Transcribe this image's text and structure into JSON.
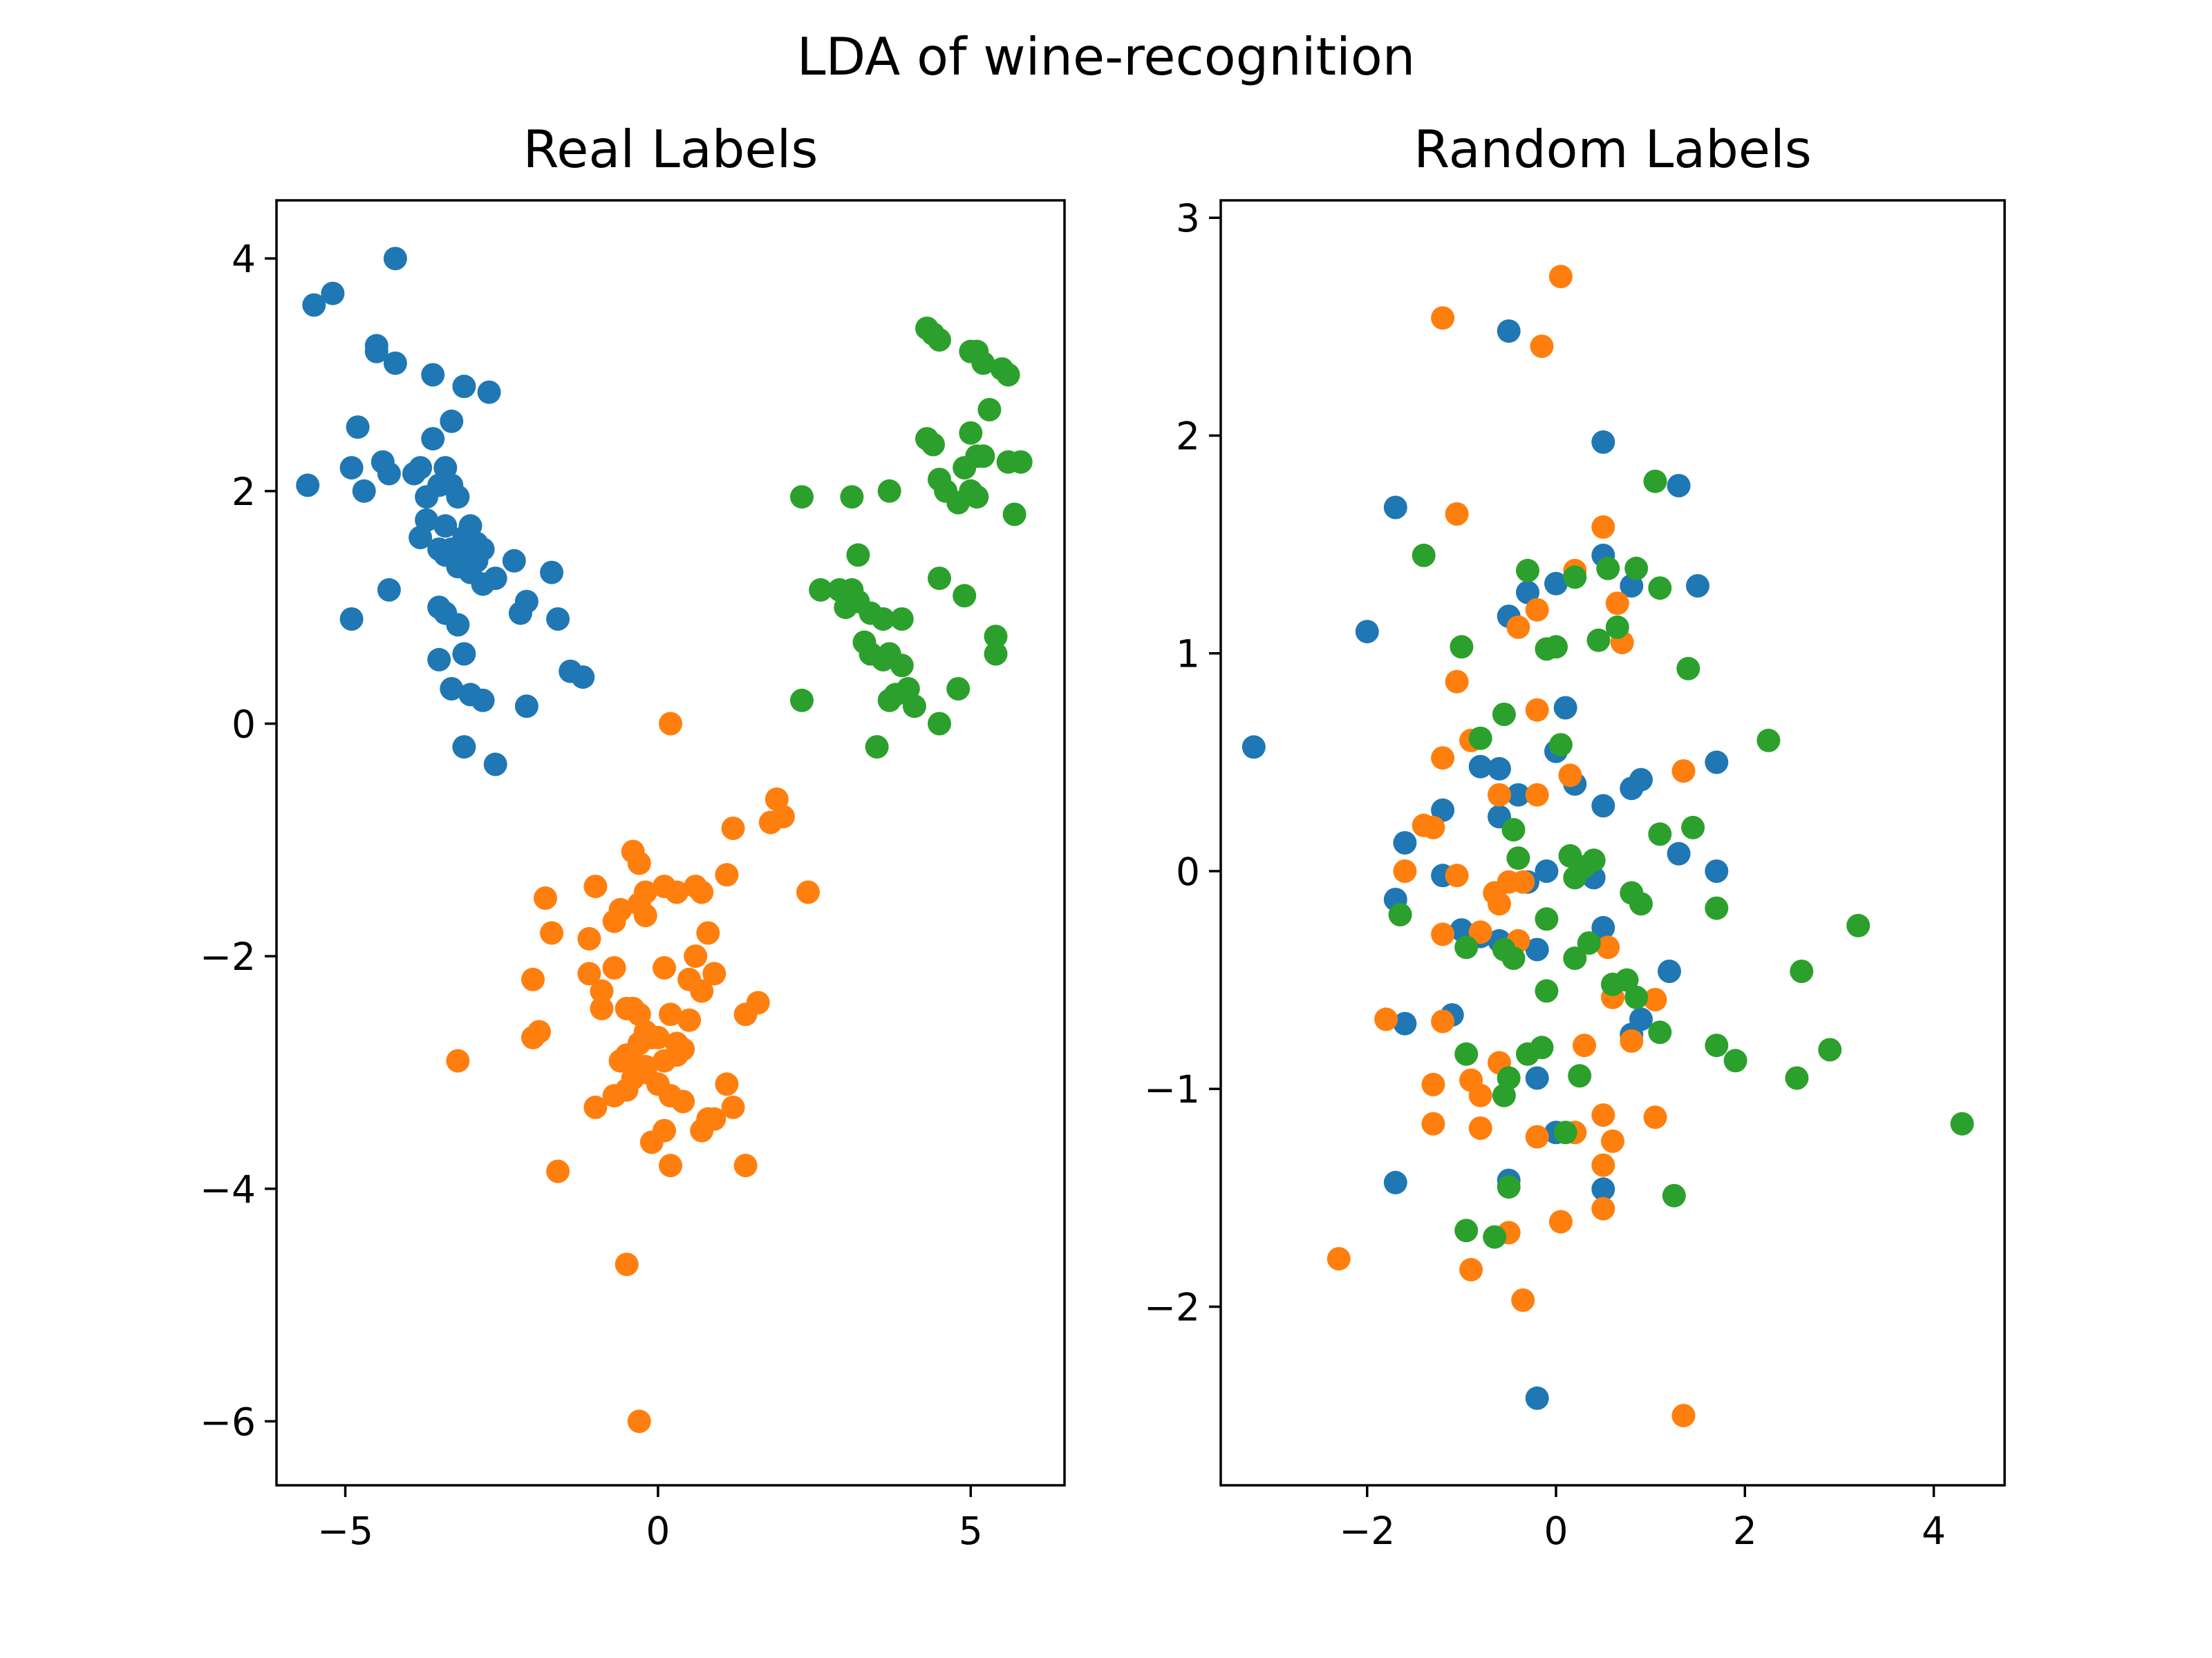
{
  "figure": {
    "title": "LDA of wine-recognition"
  },
  "colors": {
    "class0": "#1f77b4",
    "class1": "#ff7f0e",
    "class2": "#2ca02c"
  },
  "chart_data": [
    {
      "type": "scatter",
      "title": "Real Labels",
      "xlabel": "",
      "ylabel": "",
      "xlim": [
        -6.1,
        6.5
      ],
      "ylim": [
        -6.55,
        4.5
      ],
      "xticks": [
        -5,
        0,
        5
      ],
      "xticklabels": [
        "−5",
        "0",
        "5"
      ],
      "yticks": [
        -6,
        -4,
        -2,
        0,
        2,
        4
      ],
      "yticklabels": [
        "−6",
        "−4",
        "−2",
        "0",
        "2",
        "4"
      ],
      "grid": false,
      "legend": "none",
      "series": [
        {
          "color": "#1f77b4",
          "x": [
            -5.6,
            -5.5,
            -5.2,
            -4.2,
            -4.9,
            -4.8,
            -4.7,
            -4.5,
            -4.5,
            -4.4,
            -4.3,
            -4.2,
            -3.9,
            -3.8,
            -3.7,
            -3.6,
            -3.5,
            -3.4,
            -3.3,
            -3.3,
            -3.2,
            -3.6,
            -3.7,
            -3.8,
            -3.5,
            -3.4,
            -3.2,
            -3.1,
            -3.0,
            -2.9,
            -2.8,
            -2.7,
            -3.4,
            -3.3,
            -3.2,
            -3.1,
            -3.0,
            -2.9,
            -2.8,
            -3.1,
            -2.6,
            -2.3,
            -2.2,
            -2.1,
            -1.7,
            -1.6,
            -1.4,
            -1.2,
            -4.3,
            -4.9,
            -3.5,
            -3.4,
            -3.2,
            -3.1,
            -3.5,
            -3.3,
            -3.0,
            -2.8,
            -3.1,
            -2.6,
            -2.1
          ],
          "y": [
            2.05,
            3.6,
            3.7,
            4.0,
            2.2,
            2.55,
            2.0,
            3.25,
            3.2,
            2.25,
            2.15,
            3.1,
            2.15,
            2.2,
            1.95,
            2.45,
            2.05,
            2.2,
            2.05,
            2.6,
            1.95,
            3.0,
            1.75,
            1.6,
            1.5,
            1.45,
            1.4,
            1.6,
            1.7,
            1.55,
            1.2,
            2.85,
            1.7,
            1.5,
            1.35,
            1.5,
            1.3,
            1.4,
            1.5,
            2.9,
            1.25,
            1.4,
            0.95,
            1.05,
            1.3,
            0.9,
            0.45,
            0.4,
            1.15,
            0.9,
            1.0,
            0.95,
            0.85,
            0.6,
            0.55,
            0.3,
            0.25,
            0.2,
            -0.2,
            -0.35,
            0.15
          ]
        },
        {
          "color": "#ff7f0e",
          "x": [
            0.2,
            1.9,
            2.0,
            1.8,
            1.2,
            2.4,
            1.1,
            -0.4,
            -0.3,
            -0.2,
            -1.8,
            -1.0,
            -0.6,
            -0.3,
            0.1,
            0.3,
            0.6,
            0.7,
            -1.7,
            -1.1,
            -0.7,
            -0.2,
            0.1,
            0.6,
            0.8,
            -2.0,
            -1.1,
            -0.9,
            -0.7,
            -0.5,
            -0.4,
            -0.3,
            0.2,
            0.5,
            0.7,
            0.9,
            1.4,
            1.6,
            -2.0,
            -1.9,
            -0.9,
            -0.6,
            -0.4,
            -0.3,
            -0.2,
            -0.1,
            0.0,
            0.3,
            0.5,
            -3.2,
            -0.5,
            -0.4,
            -0.3,
            -0.2,
            0.1,
            0.3,
            0.4,
            -1.0,
            -0.7,
            -0.5,
            -0.2,
            0.0,
            0.2,
            0.4,
            0.8,
            1.1,
            1.2,
            -1.6,
            -0.1,
            0.1,
            0.2,
            0.7,
            0.9,
            1.4,
            -0.5,
            -0.3
          ],
          "y": [
            0.0,
            -0.65,
            -0.8,
            -0.85,
            -0.9,
            -1.45,
            -1.3,
            -1.1,
            -1.2,
            -1.45,
            -1.5,
            -1.4,
            -1.6,
            -1.55,
            -1.4,
            -1.45,
            -1.4,
            -1.45,
            -1.8,
            -1.85,
            -1.7,
            -1.65,
            -2.1,
            -2.0,
            -1.8,
            -2.2,
            -2.15,
            -2.3,
            -2.1,
            -2.45,
            -2.45,
            -2.5,
            -2.5,
            -2.2,
            -2.3,
            -2.15,
            -2.5,
            -2.4,
            -2.7,
            -2.65,
            -2.45,
            -2.9,
            -2.9,
            -2.75,
            -2.65,
            -2.7,
            -2.7,
            -2.75,
            -2.55,
            -2.9,
            -2.85,
            -3.05,
            -3.0,
            -2.95,
            -2.9,
            -2.85,
            -2.8,
            -3.3,
            -3.2,
            -3.15,
            -3.0,
            -3.1,
            -3.2,
            -3.25,
            -3.4,
            -3.1,
            -3.3,
            -3.85,
            -3.6,
            -3.5,
            -3.8,
            -3.5,
            -3.4,
            -3.8,
            -4.65,
            -6.0
          ]
        },
        {
          "color": "#2ca02c",
          "x": [
            4.3,
            4.4,
            4.5,
            5.0,
            5.1,
            5.2,
            5.5,
            5.6,
            5.3,
            4.3,
            4.4,
            5.0,
            5.1,
            5.2,
            4.9,
            4.5,
            4.6,
            4.8,
            5.0,
            5.1,
            5.7,
            5.8,
            5.6,
            3.1,
            3.2,
            3.7,
            2.3,
            3.1,
            2.6,
            2.9,
            3.0,
            3.2,
            3.4,
            3.6,
            3.9,
            4.5,
            4.9,
            3.3,
            3.4,
            3.6,
            3.7,
            3.9,
            4.0,
            3.8,
            3.7,
            4.1,
            5.4,
            5.4,
            4.8,
            2.3,
            3.5,
            4.5
          ],
          "y": [
            3.4,
            3.35,
            3.3,
            3.2,
            3.2,
            3.1,
            3.05,
            3.0,
            2.7,
            2.45,
            2.4,
            2.5,
            2.3,
            2.3,
            2.2,
            2.1,
            2.0,
            1.9,
            2.0,
            1.95,
            1.8,
            2.25,
            2.25,
            1.95,
            1.45,
            2.0,
            1.95,
            1.15,
            1.15,
            1.15,
            1.0,
            1.05,
            0.95,
            0.9,
            0.9,
            1.25,
            1.1,
            0.7,
            0.6,
            0.55,
            0.6,
            0.5,
            0.3,
            0.25,
            0.2,
            0.15,
            0.75,
            0.6,
            0.3,
            0.2,
            -0.2,
            0.0
          ]
        }
      ]
    },
    {
      "type": "scatter",
      "title": "Random Labels",
      "xlabel": "",
      "ylabel": "",
      "xlim": [
        -3.55,
        4.75
      ],
      "ylim": [
        -2.82,
        3.08
      ],
      "xticks": [
        -2,
        0,
        2,
        4
      ],
      "xticklabels": [
        "−2",
        "0",
        "2",
        "4"
      ],
      "yticks": [
        -2,
        -1,
        0,
        1,
        2,
        3
      ],
      "yticklabels": [
        "−2",
        "−1",
        "0",
        "1",
        "2",
        "3"
      ],
      "grid": false,
      "legend": "none",
      "series": [
        {
          "color": "#1f77b4",
          "x": [
            -3.2,
            -2.0,
            -1.7,
            -0.5,
            0.5,
            1.3,
            1.5,
            0.5,
            0.8,
            -0.3,
            -0.5,
            0.0,
            0.1,
            0.0,
            -0.8,
            -0.6,
            -0.4,
            0.2,
            0.5,
            0.8,
            0.9,
            1.7,
            -1.2,
            -1.6,
            -0.6,
            -1.7,
            -1.2,
            -0.3,
            -0.1,
            0.4,
            -1.0,
            -0.8,
            -0.6,
            -0.2,
            0.5,
            1.2,
            1.3,
            1.7,
            -1.1,
            -1.6,
            0.9,
            0.8,
            -0.2,
            -1.7,
            -0.5,
            0.5,
            0.0,
            -0.2
          ],
          "y": [
            0.57,
            1.1,
            1.67,
            2.48,
            1.97,
            1.77,
            1.31,
            1.45,
            1.31,
            1.28,
            1.17,
            1.32,
            0.75,
            0.55,
            0.48,
            0.47,
            0.35,
            0.4,
            0.3,
            0.38,
            0.42,
            0.5,
            0.28,
            0.13,
            0.25,
            -0.13,
            -0.02,
            -0.05,
            0.0,
            -0.03,
            -0.27,
            -0.3,
            -0.32,
            -0.36,
            -0.26,
            -0.46,
            0.08,
            0.0,
            -0.66,
            -0.7,
            -0.68,
            -0.75,
            -0.95,
            -1.43,
            -1.42,
            -1.46,
            -1.2,
            -2.42
          ]
        },
        {
          "color": "#ff7f0e",
          "x": [
            0.05,
            -1.2,
            -0.15,
            -1.05,
            0.5,
            0.2,
            0.65,
            0.7,
            -0.4,
            -0.2,
            -1.05,
            1.35,
            -0.9,
            -1.2,
            -0.2,
            0.15,
            -0.6,
            -0.2,
            -1.4,
            -1.3,
            -1.6,
            -1.05,
            -0.5,
            -0.6,
            -0.35,
            -0.65,
            -1.2,
            -0.8,
            -0.4,
            -1.8,
            -1.2,
            0.6,
            1.05,
            0.55,
            0.8,
            0.3,
            -0.6,
            -1.3,
            -0.9,
            -0.8,
            0.5,
            1.05,
            -1.3,
            -0.8,
            -0.2,
            0.2,
            0.6,
            0.5,
            0.5,
            -0.5,
            0.05,
            -2.3,
            -0.9,
            -0.35,
            1.35
          ],
          "y": [
            2.73,
            2.54,
            2.41,
            1.64,
            1.58,
            1.38,
            1.23,
            1.05,
            1.12,
            1.2,
            0.87,
            0.46,
            0.6,
            0.52,
            0.74,
            0.44,
            0.35,
            0.35,
            0.21,
            0.2,
            0.0,
            -0.02,
            -0.05,
            -0.15,
            -0.05,
            -0.1,
            -0.29,
            -0.28,
            -0.32,
            -0.68,
            -0.69,
            -0.58,
            -0.59,
            -0.35,
            -0.78,
            -0.8,
            -0.88,
            -0.98,
            -0.96,
            -1.03,
            -1.12,
            -1.13,
            -1.16,
            -1.18,
            -1.22,
            -1.2,
            -1.24,
            -1.35,
            -1.55,
            -1.66,
            -1.61,
            -1.78,
            -1.83,
            -1.97,
            -2.5
          ]
        },
        {
          "color": "#2ca02c",
          "x": [
            1.05,
            -1.4,
            -0.3,
            0.2,
            0.55,
            0.85,
            1.1,
            0.45,
            0.65,
            0.0,
            -0.1,
            -1.0,
            1.4,
            -0.55,
            -0.8,
            0.05,
            2.25,
            1.1,
            1.45,
            -0.45,
            -0.4,
            0.15,
            0.4,
            0.3,
            0.2,
            -0.1,
            0.8,
            0.9,
            -1.65,
            -0.95,
            1.7,
            -0.45,
            -0.55,
            0.2,
            0.35,
            0.6,
            0.75,
            0.85,
            -0.1,
            2.6,
            3.2,
            1.1,
            -0.95,
            -0.3,
            -0.15,
            -0.5,
            -0.55,
            0.25,
            1.7,
            1.9,
            2.55,
            2.9,
            4.3,
            0.1,
            -0.5,
            1.25,
            -0.95,
            -0.65
          ],
          "y": [
            1.79,
            1.45,
            1.38,
            1.35,
            1.39,
            1.39,
            1.3,
            1.06,
            1.12,
            1.03,
            1.02,
            1.03,
            0.93,
            0.72,
            0.61,
            0.58,
            0.6,
            0.17,
            0.2,
            0.19,
            0.06,
            0.07,
            0.05,
            0.02,
            -0.03,
            -0.22,
            -0.1,
            -0.15,
            -0.2,
            -0.35,
            -0.17,
            -0.4,
            -0.36,
            -0.4,
            -0.33,
            -0.52,
            -0.5,
            -0.58,
            -0.55,
            -0.46,
            -0.25,
            -0.74,
            -0.84,
            -0.84,
            -0.81,
            -0.95,
            -1.03,
            -0.94,
            -0.8,
            -0.87,
            -0.95,
            -0.82,
            -1.16,
            -1.2,
            -1.45,
            -1.49,
            -1.65,
            -1.68
          ]
        }
      ]
    }
  ]
}
